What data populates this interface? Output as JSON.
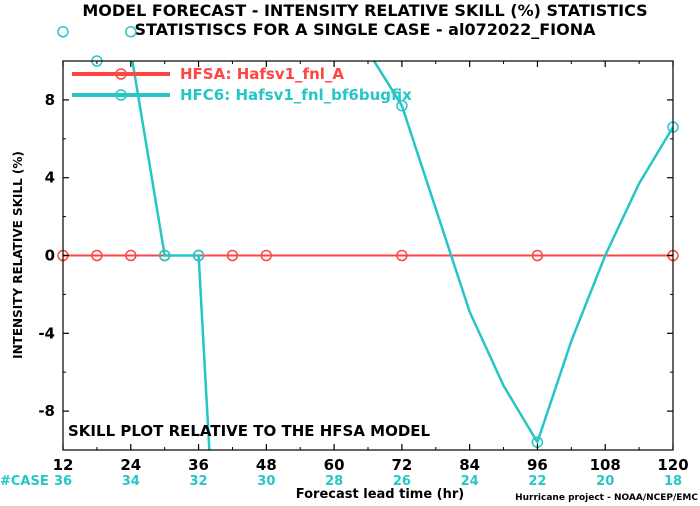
{
  "chart_data": {
    "type": "line",
    "title": "MODEL FORECAST - INTENSITY RELATIVE SKILL (%) STATISTICS",
    "subtitle": "STATISTISCS FOR A SINGLE CASE - al072022_FIONA",
    "xlabel": "Forecast lead time (hr)",
    "ylabel": "INTENSITY RELATIVE SKILL (%)",
    "xlim": [
      12,
      120
    ],
    "ylim": [
      -10,
      10
    ],
    "xticks": [
      12,
      24,
      36,
      48,
      60,
      72,
      84,
      96,
      108,
      120
    ],
    "yticks": [
      -8,
      -4,
      0,
      4,
      8
    ],
    "grid": false,
    "legend_position": "top-left",
    "cases_label": "#CASE",
    "cases": [
      {
        "x": 12,
        "n": "36"
      },
      {
        "x": 24,
        "n": "34"
      },
      {
        "x": 36,
        "n": "32"
      },
      {
        "x": 48,
        "n": "30"
      },
      {
        "x": 60,
        "n": "28"
      },
      {
        "x": 72,
        "n": "26"
      },
      {
        "x": 84,
        "n": "24"
      },
      {
        "x": 96,
        "n": "22"
      },
      {
        "x": 108,
        "n": "20"
      },
      {
        "x": 120,
        "n": "18"
      }
    ],
    "annotation": "SKILL PLOT RELATIVE TO THE HFSA MODEL",
    "credit": "Hurricane project - NOAA/NCEP/EMC",
    "series": [
      {
        "name": "HFSA: Hafsv1_fnl_A",
        "color": "#ff4444",
        "x": [
          12,
          18,
          24,
          30,
          36,
          42,
          48,
          72,
          96,
          120
        ],
        "y": [
          0,
          0,
          0,
          0,
          0,
          0,
          0,
          0,
          0,
          0
        ],
        "line_x": [
          12,
          120
        ],
        "line_y": [
          0,
          0
        ]
      },
      {
        "name": "HFC6: Hafsv1_fnl_bf6bugfix",
        "color": "#26c6c6",
        "x": [
          12,
          18,
          24,
          30,
          36,
          72,
          96,
          120
        ],
        "y": [
          11.5,
          10.0,
          11.5,
          0,
          0,
          7.7,
          -9.6,
          6.6
        ],
        "line_x": [
          24,
          30,
          36,
          38,
          null,
          66,
          72,
          78,
          84,
          90,
          96,
          102,
          108,
          114,
          120
        ],
        "line_y": [
          10.5,
          0,
          0,
          -10.5,
          null,
          10.5,
          7.7,
          2.4,
          -2.9,
          -6.7,
          -9.6,
          -4.4,
          0,
          3.7,
          6.6
        ]
      }
    ]
  }
}
